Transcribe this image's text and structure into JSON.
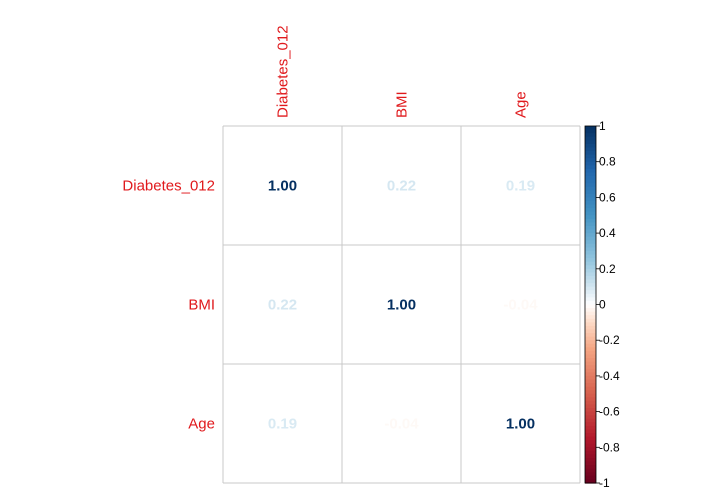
{
  "chart_data": {
    "type": "heatmap",
    "title": "",
    "variables": [
      "Diabetes_012",
      "BMI",
      "Age"
    ],
    "matrix": [
      [
        1.0,
        0.22,
        0.19
      ],
      [
        0.22,
        1.0,
        -0.04
      ],
      [
        0.19,
        -0.04,
        1.0
      ]
    ],
    "value_labels": [
      [
        "1.00",
        "0.22",
        "0.19"
      ],
      [
        "0.22",
        "1.00",
        "-0.04"
      ],
      [
        "0.19",
        "-0.04",
        "1.00"
      ]
    ],
    "colorbar": {
      "range": [
        -1,
        1
      ],
      "ticks": [
        1,
        0.8,
        0.6,
        0.4,
        0.2,
        0,
        -0.2,
        -0.4,
        -0.6,
        -0.8,
        -1
      ],
      "tick_labels": [
        "1",
        "0.8",
        "0.6",
        "0.4",
        "0.2",
        "0",
        "-0.2",
        "-0.4",
        "-0.6",
        "-0.8",
        "-1"
      ],
      "placement": "right"
    },
    "label_color": "#e0191c",
    "grid": true
  }
}
